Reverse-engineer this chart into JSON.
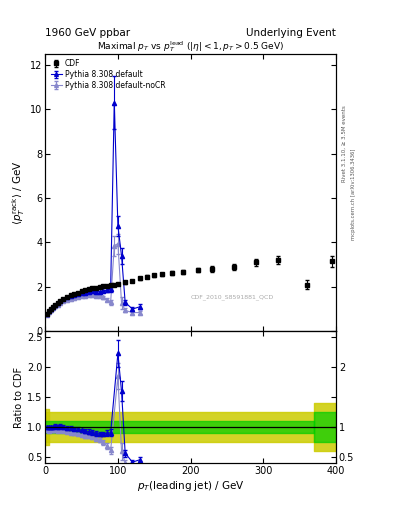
{
  "title_left": "1960 GeV ppbar",
  "title_right": "Underlying Event",
  "plot_title": "Maximal $p_T$ vs $p_T^{\\rm lead}$ ($|\\eta| < 1, p_T > 0.5$ GeV)",
  "xlabel": "$p_T$(leading jet) / GeV",
  "ylabel_main": "$\\langle p_T^{\\rm rack} \\rangle$ / GeV",
  "ylabel_ratio": "Ratio to CDF",
  "watermark": "CDF_2010_S8591881_QCD",
  "right_label1": "Rivet 3.1.10, ≥ 3.5M events",
  "right_label2": "mcplots.cern.ch [arXiv:1306.3436]",
  "xlim": [
    0,
    400
  ],
  "ylim_main": [
    0,
    12.5
  ],
  "ylim_ratio": [
    0.4,
    2.6
  ],
  "cdf_x": [
    2,
    5,
    8,
    11,
    14,
    17,
    20,
    25,
    30,
    35,
    40,
    45,
    50,
    55,
    60,
    65,
    70,
    75,
    80,
    85,
    90,
    95,
    100,
    110,
    120,
    130,
    140,
    150,
    160,
    175,
    190,
    210,
    230,
    260,
    290,
    320,
    360,
    395
  ],
  "cdf_y": [
    0.78,
    0.9,
    1.0,
    1.1,
    1.18,
    1.27,
    1.35,
    1.45,
    1.55,
    1.62,
    1.68,
    1.73,
    1.8,
    1.85,
    1.9,
    1.94,
    1.97,
    2.0,
    2.03,
    2.06,
    2.09,
    2.1,
    2.13,
    2.2,
    2.28,
    2.38,
    2.46,
    2.52,
    2.57,
    2.63,
    2.68,
    2.75,
    2.8,
    2.9,
    3.1,
    3.2,
    2.1,
    3.15
  ],
  "cdf_yerr": [
    0.03,
    0.03,
    0.03,
    0.03,
    0.03,
    0.03,
    0.03,
    0.03,
    0.03,
    0.03,
    0.03,
    0.03,
    0.04,
    0.04,
    0.04,
    0.04,
    0.04,
    0.04,
    0.04,
    0.04,
    0.04,
    0.04,
    0.05,
    0.05,
    0.05,
    0.06,
    0.06,
    0.07,
    0.07,
    0.08,
    0.09,
    0.1,
    0.12,
    0.14,
    0.16,
    0.18,
    0.2,
    0.25
  ],
  "py_x": [
    2,
    5,
    8,
    11,
    14,
    17,
    20,
    25,
    30,
    35,
    40,
    45,
    50,
    55,
    60,
    65,
    70,
    75,
    80,
    85,
    90,
    95,
    100,
    105,
    110,
    120,
    130
  ],
  "py_y": [
    0.78,
    0.9,
    1.0,
    1.1,
    1.2,
    1.28,
    1.38,
    1.46,
    1.54,
    1.6,
    1.64,
    1.67,
    1.7,
    1.73,
    1.76,
    1.79,
    1.77,
    1.78,
    1.8,
    1.85,
    1.9,
    10.3,
    4.75,
    3.4,
    1.3,
    1.0,
    1.1
  ],
  "py_yerr": [
    0.02,
    0.02,
    0.02,
    0.02,
    0.02,
    0.02,
    0.02,
    0.02,
    0.02,
    0.02,
    0.02,
    0.02,
    0.02,
    0.02,
    0.03,
    0.03,
    0.03,
    0.04,
    0.05,
    0.08,
    0.12,
    1.2,
    0.45,
    0.35,
    0.12,
    0.09,
    0.12
  ],
  "pync_x": [
    2,
    5,
    8,
    11,
    14,
    17,
    20,
    25,
    30,
    35,
    40,
    45,
    50,
    55,
    60,
    65,
    70,
    75,
    80,
    85,
    90,
    95,
    100,
    105,
    110,
    120,
    130
  ],
  "pync_y": [
    0.74,
    0.85,
    0.95,
    1.04,
    1.12,
    1.2,
    1.29,
    1.36,
    1.42,
    1.47,
    1.51,
    1.54,
    1.57,
    1.59,
    1.61,
    1.63,
    1.6,
    1.58,
    1.52,
    1.42,
    1.3,
    3.85,
    3.95,
    1.27,
    0.94,
    0.84,
    0.84
  ],
  "pync_yerr": [
    0.02,
    0.02,
    0.02,
    0.02,
    0.02,
    0.02,
    0.02,
    0.02,
    0.02,
    0.02,
    0.02,
    0.02,
    0.02,
    0.02,
    0.03,
    0.03,
    0.03,
    0.04,
    0.05,
    0.07,
    0.1,
    0.45,
    0.45,
    0.28,
    0.09,
    0.07,
    0.07
  ],
  "ratio_py_x": [
    2,
    5,
    8,
    11,
    14,
    17,
    20,
    25,
    30,
    35,
    40,
    45,
    50,
    55,
    60,
    65,
    70,
    75,
    80,
    85,
    90,
    100,
    105,
    110,
    120,
    130
  ],
  "ratio_py_y": [
    1.0,
    1.0,
    1.0,
    1.0,
    1.02,
    1.01,
    1.02,
    1.01,
    0.99,
    0.99,
    0.98,
    0.97,
    0.95,
    0.94,
    0.93,
    0.92,
    0.9,
    0.89,
    0.89,
    0.9,
    0.91,
    2.23,
    1.6,
    0.57,
    0.42,
    0.46
  ],
  "ratio_py_yerr": [
    0.03,
    0.03,
    0.03,
    0.03,
    0.03,
    0.03,
    0.03,
    0.03,
    0.03,
    0.03,
    0.03,
    0.03,
    0.03,
    0.03,
    0.04,
    0.04,
    0.04,
    0.04,
    0.04,
    0.05,
    0.06,
    0.22,
    0.17,
    0.06,
    0.04,
    0.05
  ],
  "ratio_pync_x": [
    2,
    5,
    8,
    11,
    14,
    17,
    20,
    25,
    30,
    35,
    40,
    45,
    50,
    55,
    60,
    65,
    70,
    75,
    80,
    85,
    90,
    100,
    105,
    110,
    120,
    130
  ],
  "ratio_pync_y": [
    0.95,
    0.94,
    0.95,
    0.95,
    0.95,
    0.94,
    0.95,
    0.94,
    0.92,
    0.91,
    0.9,
    0.89,
    0.87,
    0.86,
    0.85,
    0.84,
    0.81,
    0.79,
    0.75,
    0.69,
    0.62,
    1.85,
    0.6,
    0.41,
    0.35,
    0.35
  ],
  "ratio_pync_yerr": [
    0.02,
    0.02,
    0.02,
    0.02,
    0.02,
    0.02,
    0.02,
    0.02,
    0.02,
    0.02,
    0.02,
    0.02,
    0.02,
    0.03,
    0.03,
    0.03,
    0.03,
    0.03,
    0.04,
    0.05,
    0.06,
    0.22,
    0.14,
    0.04,
    0.03,
    0.03
  ],
  "ratio_spike_py_x": [
    95
  ],
  "ratio_spike_py_y": [
    2.58
  ],
  "color_cdf": "#000000",
  "color_py": "#0000cc",
  "color_pync": "#8888cc",
  "color_green": "#00cc00",
  "color_yellow": "#cccc00",
  "background": "#ffffff"
}
